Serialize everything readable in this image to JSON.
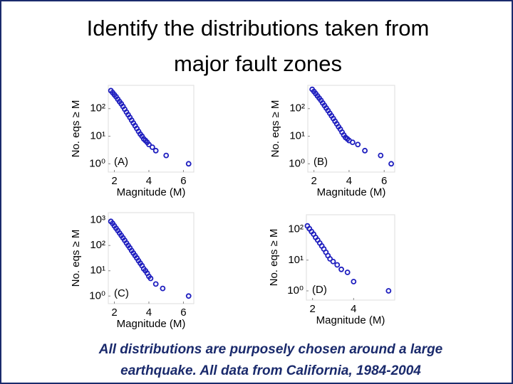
{
  "slide": {
    "title": [
      "Identify the distributions taken from",
      "major fault zones"
    ],
    "caption": [
      "All distributions are purposely chosen around a large",
      "earthquake.  All data from California, 1984-2004"
    ]
  },
  "chart_data": [
    {
      "type": "scatter",
      "panel_label": "(A)",
      "xlabel": "Magnitude (M)",
      "ylabel": "No. eqs ≥ M",
      "log_y": true,
      "color": "#1f1fbf",
      "x": [
        1.8,
        1.9,
        2.0,
        2.1,
        2.2,
        2.3,
        2.4,
        2.5,
        2.6,
        2.7,
        2.8,
        2.9,
        3.0,
        3.1,
        3.2,
        3.3,
        3.4,
        3.5,
        3.6,
        3.7,
        3.8,
        3.9,
        4.0,
        4.2,
        4.4,
        5.0,
        6.3
      ],
      "values": [
        450,
        380,
        320,
        270,
        220,
        180,
        150,
        120,
        95,
        75,
        60,
        48,
        38,
        30,
        24,
        19,
        15,
        12,
        10,
        8,
        7,
        6,
        5,
        4,
        3,
        2,
        1
      ],
      "xlim": [
        1.65,
        6.6
      ],
      "ylim": [
        0.5,
        700
      ],
      "xticks": [
        2,
        4,
        6
      ],
      "yticks": [
        {
          "value": 1,
          "label": "10⁰"
        },
        {
          "value": 10,
          "label": "10¹"
        },
        {
          "value": 100,
          "label": "10²"
        }
      ]
    },
    {
      "type": "scatter",
      "panel_label": "(B)",
      "xlabel": "Magnitude (M)",
      "ylabel": "No. eqs ≥ M",
      "log_y": true,
      "color": "#1f1fbf",
      "x": [
        1.9,
        2.0,
        2.1,
        2.2,
        2.3,
        2.4,
        2.5,
        2.6,
        2.7,
        2.8,
        2.9,
        3.0,
        3.1,
        3.2,
        3.3,
        3.4,
        3.5,
        3.6,
        3.7,
        3.8,
        3.9,
        4.0,
        4.2,
        4.5,
        4.9,
        5.8,
        6.4
      ],
      "values": [
        500,
        420,
        350,
        290,
        240,
        200,
        160,
        130,
        105,
        85,
        68,
        55,
        44,
        35,
        28,
        22,
        18,
        14,
        11,
        9,
        8,
        7,
        6,
        5,
        3,
        2,
        1
      ],
      "xlim": [
        1.65,
        6.6
      ],
      "ylim": [
        0.5,
        700
      ],
      "xticks": [
        2,
        4,
        6
      ],
      "yticks": [
        {
          "value": 1,
          "label": "10⁰"
        },
        {
          "value": 10,
          "label": "10¹"
        },
        {
          "value": 100,
          "label": "10²"
        }
      ]
    },
    {
      "type": "scatter",
      "panel_label": "(C)",
      "xlabel": "Magnitude (M)",
      "ylabel": "No. eqs ≥ M",
      "log_y": true,
      "color": "#1f1fbf",
      "x": [
        1.8,
        1.9,
        2.0,
        2.1,
        2.2,
        2.3,
        2.4,
        2.5,
        2.6,
        2.7,
        2.8,
        2.9,
        3.0,
        3.1,
        3.2,
        3.3,
        3.4,
        3.5,
        3.6,
        3.7,
        3.8,
        3.9,
        4.0,
        4.1,
        4.4,
        4.8,
        6.3
      ],
      "values": [
        900,
        750,
        600,
        480,
        390,
        310,
        250,
        200,
        160,
        125,
        100,
        80,
        63,
        50,
        40,
        32,
        25,
        20,
        16,
        12,
        10,
        8,
        6,
        5,
        3,
        2,
        1
      ],
      "xlim": [
        1.65,
        6.6
      ],
      "ylim": [
        0.5,
        2000
      ],
      "xticks": [
        2,
        4,
        6
      ],
      "yticks": [
        {
          "value": 1,
          "label": "10⁰"
        },
        {
          "value": 10,
          "label": "10¹"
        },
        {
          "value": 100,
          "label": "10²"
        },
        {
          "value": 1000,
          "label": "10³"
        }
      ]
    },
    {
      "type": "scatter",
      "panel_label": "(D)",
      "xlabel": "Magnitude (M)",
      "ylabel": "No. eqs ≥ M",
      "log_y": true,
      "color": "#1f1fbf",
      "x": [
        1.75,
        1.85,
        1.95,
        2.05,
        2.15,
        2.25,
        2.35,
        2.45,
        2.55,
        2.65,
        2.75,
        2.85,
        3.0,
        3.2,
        3.4,
        3.7,
        4.0,
        5.7
      ],
      "values": [
        130,
        105,
        85,
        70,
        55,
        45,
        36,
        29,
        23,
        18,
        14,
        11,
        9,
        7,
        5,
        4,
        2,
        1
      ],
      "xlim": [
        1.7,
        6.0
      ],
      "ylim": [
        0.5,
        300
      ],
      "xticks": [
        2,
        4
      ],
      "yticks": [
        {
          "value": 1,
          "label": "10⁰"
        },
        {
          "value": 10,
          "label": "10¹"
        },
        {
          "value": 100,
          "label": "10²"
        }
      ]
    }
  ]
}
